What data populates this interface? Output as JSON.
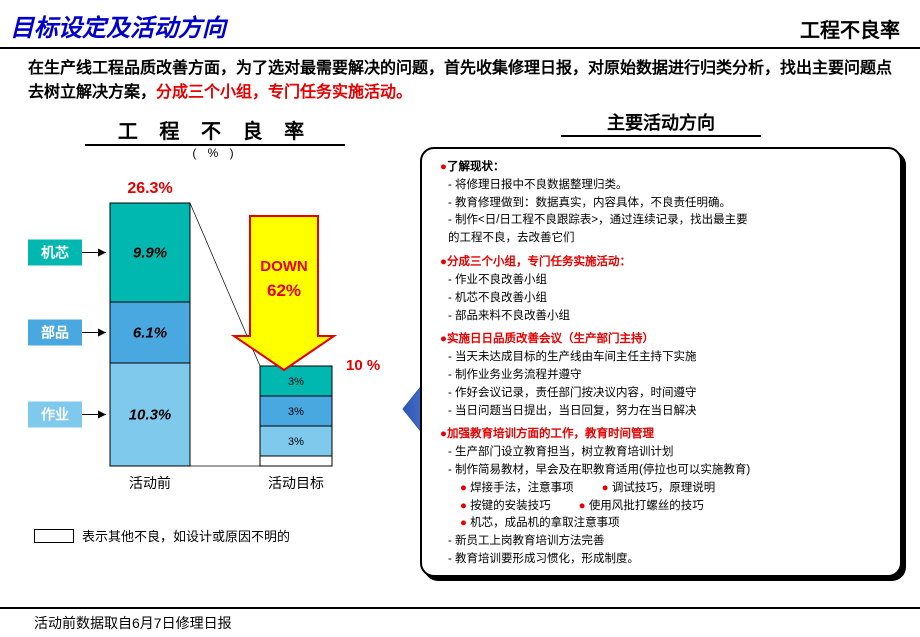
{
  "header": {
    "left": "目标设定及活动方向",
    "right": "工程不良率"
  },
  "intro": {
    "black": "在生产线工程品质改善方面，为了选对最需要解决的问题，首先收集修理日报，对原始数据进行归类分析，找出主要问题点去树立解决方案，",
    "red": "分成三个小组，专门任务实施活动。"
  },
  "chart": {
    "title": "工 程 不 良 率",
    "unit": "( % )",
    "before_total_label": "26.3%",
    "target_total_label": "10 %",
    "down_label_1": "DOWN",
    "down_label_2": "62%",
    "categories": [
      {
        "name": "机芯",
        "color": "#00b8b0",
        "value_label": "9.9%",
        "value": 9.9,
        "target_label": "3%",
        "target": 3
      },
      {
        "name": "部品",
        "color": "#4aa8e0",
        "value_label": "6.1%",
        "value": 6.1,
        "target_label": "3%",
        "target": 3
      },
      {
        "name": "作业",
        "color": "#7ec9ec",
        "value_label": "10.3%",
        "value": 10.3,
        "target_label": "3%",
        "target": 3
      }
    ],
    "other_before": 0,
    "other_target": 1,
    "axis_labels": {
      "before": "活动前",
      "target": "活动目标"
    },
    "note_text": "表示其他不良，如设计或原因不明的",
    "colors": {
      "arrow_fill": "#ffff00",
      "arrow_stroke": "#e60000",
      "big_arrow_fill": "#4a7ad0"
    }
  },
  "right": {
    "title": "主要活动方向",
    "sections": [
      {
        "head": "●了解现状：",
        "red": false,
        "items": [
          "- 将修理日报中不良数据整理归类。",
          "- 教育修理做到：数据真实，内容具体，不良责任明确。",
          "- 制作<日/日工程不良跟踪表>，通过连续记录，找出最主要",
          "  的工程不良，去改善它们"
        ]
      },
      {
        "head": "●分成三个小组，专门任务实施活动：",
        "red": true,
        "items": [
          "- 作业不良改善小组",
          "- 机芯不良改善小组",
          "- 部品来料不良改善小组"
        ]
      },
      {
        "head": "●实施日日品质改善会议（生产部门主持）",
        "red": true,
        "items": [
          "- 当天未达成目标的生产线由车间主任主持下实施",
          "- 制作业务业务流程并遵守",
          "- 作好会议记录，责任部门按决议内容，时间遵守",
          "- 当日问题当日提出，当日回复，努力在当日解决"
        ]
      },
      {
        "head": "●加强教育培训方面的工作，教育时间管理",
        "red": true,
        "items": [
          "- 生产部门设立教育担当，树立教育培训计划",
          "- 制作简易教材，早会及在职教育适用(停拉也可以实施教育)"
        ],
        "subgrid": [
          [
            "焊接手法，注意事项",
            "调试技巧，原理说明"
          ],
          [
            "按键的安装技巧",
            "使用风批打螺丝的技巧"
          ],
          [
            "机芯，成品机的拿取注意事项",
            ""
          ]
        ],
        "tail": [
          "- 新员工上岗教育培训方法完善",
          "- 教育培训要形成习惯化，形成制度。"
        ]
      }
    ]
  },
  "footnote": "活动前数据取自6月7日修理日报"
}
